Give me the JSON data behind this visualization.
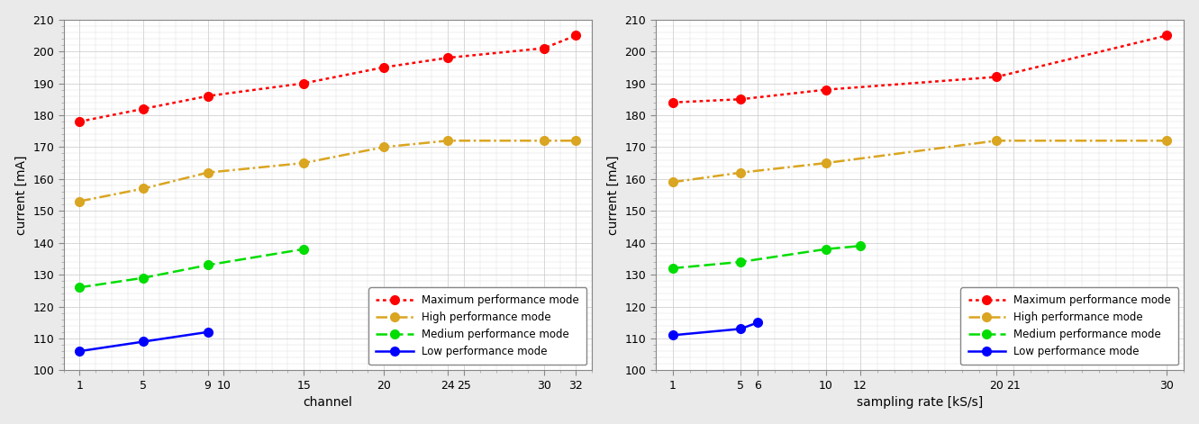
{
  "left": {
    "xlabel": "channel",
    "ylabel": "current [mA]",
    "ylim": [
      100,
      210
    ],
    "yticks": [
      100,
      110,
      120,
      130,
      140,
      150,
      160,
      170,
      180,
      190,
      200,
      210
    ],
    "xticks": [
      1,
      5,
      9,
      10,
      15,
      20,
      24,
      25,
      30,
      32
    ],
    "xtick_labels": [
      "1",
      "5",
      "9",
      "10",
      "15",
      "20",
      "24",
      "25",
      "30",
      "32"
    ],
    "xlim": [
      0,
      33
    ],
    "series": [
      {
        "label": "Maximum performance mode",
        "color": "#FF0000",
        "linestyle": "dotted",
        "marker": "o",
        "x": [
          1,
          5,
          9,
          15,
          20,
          24,
          30,
          32
        ],
        "y": [
          178,
          182,
          186,
          190,
          195,
          198,
          201,
          205
        ]
      },
      {
        "label": "High performance mode",
        "color": "#DAA520",
        "linestyle": "dashdot",
        "marker": "o",
        "x": [
          1,
          5,
          9,
          15,
          20,
          24,
          30,
          32
        ],
        "y": [
          153,
          157,
          162,
          165,
          170,
          172,
          172,
          172
        ]
      },
      {
        "label": "Medium performance mode",
        "color": "#00DD00",
        "linestyle": "dashed",
        "marker": "o",
        "x": [
          1,
          5,
          9,
          15
        ],
        "y": [
          126,
          129,
          133,
          138
        ]
      },
      {
        "label": "Low performance mode",
        "color": "#0000FF",
        "linestyle": "solid",
        "marker": "o",
        "x": [
          1,
          5,
          9
        ],
        "y": [
          106,
          109,
          112
        ]
      }
    ]
  },
  "right": {
    "xlabel": "sampling rate [kS/s]",
    "ylabel": "current [mA]",
    "ylim": [
      100,
      210
    ],
    "yticks": [
      100,
      110,
      120,
      130,
      140,
      150,
      160,
      170,
      180,
      190,
      200,
      210
    ],
    "xticks": [
      1,
      5,
      6,
      10,
      12,
      20,
      21,
      30
    ],
    "xtick_labels": [
      "1",
      "5",
      "6",
      "10",
      "12",
      "20",
      "21",
      "30"
    ],
    "xlim": [
      0,
      31
    ],
    "series": [
      {
        "label": "Maximum performance mode",
        "color": "#FF0000",
        "linestyle": "dotted",
        "marker": "o",
        "x": [
          1,
          5,
          10,
          20,
          30
        ],
        "y": [
          184,
          185,
          188,
          192,
          205
        ]
      },
      {
        "label": "High performance mode",
        "color": "#DAA520",
        "linestyle": "dashdot",
        "marker": "o",
        "x": [
          1,
          5,
          10,
          20,
          30
        ],
        "y": [
          159,
          162,
          165,
          172,
          172
        ]
      },
      {
        "label": "Medium performance mode",
        "color": "#00DD00",
        "linestyle": "dashed",
        "marker": "o",
        "x": [
          1,
          5,
          10,
          12
        ],
        "y": [
          132,
          134,
          138,
          139
        ]
      },
      {
        "label": "Low performance mode",
        "color": "#0000FF",
        "linestyle": "solid",
        "marker": "o",
        "x": [
          1,
          5,
          6
        ],
        "y": [
          111,
          113,
          115
        ]
      }
    ]
  },
  "legend_loc": "lower right",
  "plot_bg_color": "#FFFFFF",
  "fig_bg_color": "#EAEAEA",
  "grid_color": "#FFFFFF",
  "grid_minor_color": "#E8E8E8",
  "markersize": 7,
  "linewidth": 1.8
}
